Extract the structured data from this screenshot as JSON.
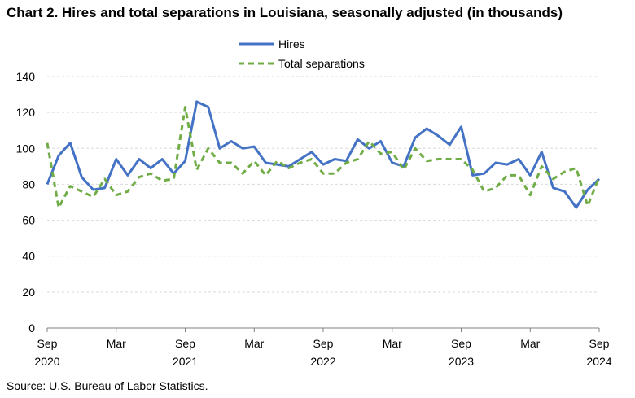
{
  "title": "Chart 2. Hires and total separations in Louisiana, seasonally adjusted (in thousands)",
  "source": "Source: U.S. Bureau of Labor Statistics.",
  "colors": {
    "hires": "#4472C4",
    "separations": "#70AD47",
    "grid": "#d9d9d9",
    "axis": "#000000"
  },
  "chart_data": {
    "type": "line",
    "title": "Hires and total separations in Louisiana, seasonally adjusted (in thousands)",
    "xlabel": "",
    "ylabel": "",
    "ylim": [
      0,
      140
    ],
    "yticks": [
      0,
      20,
      40,
      60,
      80,
      100,
      120,
      140
    ],
    "grid": true,
    "legend": "top-center",
    "x_tick_labels": [
      {
        "index": 0,
        "month": "Sep",
        "year": "2020"
      },
      {
        "index": 6,
        "month": "Mar",
        "year": ""
      },
      {
        "index": 12,
        "month": "Sep",
        "year": "2021"
      },
      {
        "index": 18,
        "month": "Mar",
        "year": ""
      },
      {
        "index": 24,
        "month": "Sep",
        "year": "2022"
      },
      {
        "index": 30,
        "month": "Mar",
        "year": ""
      },
      {
        "index": 36,
        "month": "Sep",
        "year": "2023"
      },
      {
        "index": 42,
        "month": "Mar",
        "year": ""
      },
      {
        "index": 48,
        "month": "Sep",
        "year": "2024"
      }
    ],
    "series": [
      {
        "name": "Hires",
        "style": "solid",
        "values": [
          80,
          96,
          103,
          84,
          77,
          78,
          94,
          85,
          94,
          89,
          94,
          86,
          93,
          126,
          123,
          100,
          104,
          100,
          101,
          92,
          91,
          90,
          94,
          98,
          91,
          94,
          93,
          105,
          100,
          104,
          92,
          90,
          106,
          111,
          107,
          102,
          112,
          85,
          86,
          92,
          91,
          94,
          85,
          98,
          78,
          76,
          67,
          77,
          83
        ]
      },
      {
        "name": "Total separations",
        "style": "dashed",
        "values": [
          103,
          67,
          79,
          76,
          73,
          83,
          74,
          76,
          84,
          86,
          82,
          83,
          123,
          88,
          100,
          92,
          92,
          86,
          93,
          85,
          93,
          89,
          92,
          94,
          86,
          86,
          92,
          94,
          104,
          97,
          98,
          88,
          100,
          93,
          94,
          94,
          94,
          88,
          76,
          78,
          85,
          85,
          74,
          90,
          83,
          87,
          89,
          68,
          84
        ]
      }
    ]
  }
}
